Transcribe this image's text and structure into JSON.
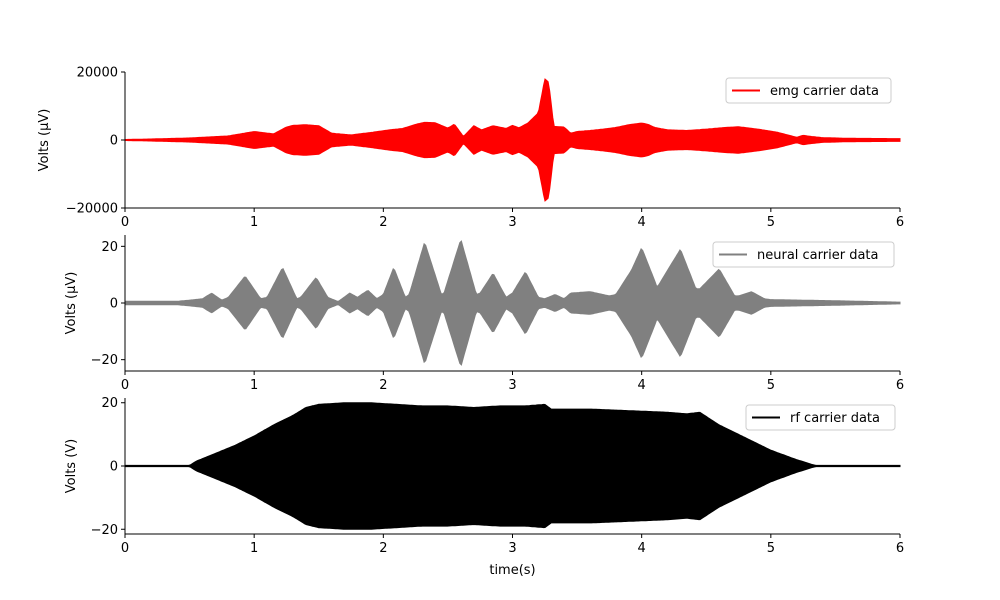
{
  "chart_data": [
    {
      "type": "area",
      "ylabel": "Volts (μV)",
      "xlabel": "",
      "xlim": [
        0,
        6
      ],
      "ylim": [
        -20000,
        20000
      ],
      "x_ticks": [
        "0",
        "1",
        "2",
        "3",
        "4",
        "5",
        "6"
      ],
      "y_ticks": [
        {
          "value": 20000,
          "label": "20000"
        },
        {
          "value": 0,
          "label": "0"
        },
        {
          "value": -20000,
          "label": "−20000"
        }
      ],
      "legend": "top-right",
      "series": [
        {
          "name": "emg carrier data",
          "color": "#ff0000",
          "x": [
            0,
            0.2,
            0.5,
            0.8,
            1.0,
            1.15,
            1.25,
            1.3,
            1.4,
            1.5,
            1.6,
            1.75,
            1.9,
            2.05,
            2.15,
            2.25,
            2.32,
            2.4,
            2.5,
            2.55,
            2.62,
            2.7,
            2.76,
            2.85,
            2.95,
            3.0,
            3.05,
            3.12,
            3.2,
            3.25,
            3.28,
            3.32,
            3.4,
            3.45,
            3.5,
            3.6,
            3.7,
            3.8,
            3.9,
            4.0,
            4.05,
            4.1,
            4.2,
            4.35,
            4.5,
            4.65,
            4.75,
            4.9,
            5.05,
            5.2,
            5.25,
            5.3,
            5.4,
            5.6,
            6.0
          ],
          "y_envelope": [
            150,
            300,
            600,
            1200,
            2500,
            1800,
            3800,
            4300,
            4500,
            4200,
            2000,
            1500,
            2200,
            3000,
            3400,
            4600,
            5200,
            5100,
            3500,
            4700,
            1000,
            4200,
            3000,
            4200,
            3400,
            4300,
            3600,
            5000,
            8000,
            18000,
            17000,
            4000,
            3800,
            2000,
            2500,
            2800,
            3200,
            3700,
            4500,
            5000,
            4600,
            3700,
            3000,
            2800,
            3200,
            3700,
            3900,
            3200,
            2300,
            800,
            1400,
            1100,
            700,
            500,
            400
          ]
        }
      ]
    },
    {
      "type": "area",
      "ylabel": "Volts (μV)",
      "xlabel": "",
      "xlim": [
        0,
        6
      ],
      "ylim": [
        -24,
        24
      ],
      "x_ticks": [
        "0",
        "1",
        "2",
        "3",
        "4",
        "5",
        "6"
      ],
      "y_ticks": [
        {
          "value": 20,
          "label": "20"
        },
        {
          "value": 0,
          "label": "0"
        },
        {
          "value": -20,
          "label": "−20"
        }
      ],
      "legend": "top-right",
      "series": [
        {
          "name": "neural carrier data",
          "color": "#808080",
          "x": [
            0,
            0.4,
            0.5,
            0.6,
            0.67,
            0.75,
            0.8,
            0.93,
            1.05,
            1.1,
            1.22,
            1.33,
            1.36,
            1.48,
            1.57,
            1.65,
            1.74,
            1.8,
            1.88,
            1.95,
            2.0,
            2.08,
            2.17,
            2.2,
            2.32,
            2.45,
            2.47,
            2.6,
            2.72,
            2.75,
            2.85,
            2.95,
            3.0,
            3.1,
            3.2,
            3.25,
            3.33,
            3.4,
            3.45,
            3.6,
            3.75,
            3.8,
            3.92,
            4.0,
            4.1,
            4.12,
            4.3,
            4.42,
            4.45,
            4.6,
            4.72,
            4.75,
            4.85,
            4.95,
            5.0,
            5.5,
            6.0
          ],
          "y_envelope": [
            0.6,
            0.6,
            1.0,
            1.5,
            3.5,
            1.0,
            2.0,
            9.5,
            1.5,
            2.0,
            12.5,
            1.5,
            2.0,
            9.0,
            2.0,
            0.5,
            3.5,
            2.0,
            4.5,
            1.5,
            3.0,
            12.5,
            2.0,
            3.0,
            21.5,
            3.0,
            3.5,
            22.5,
            3.0,
            3.5,
            10.5,
            2.0,
            3.5,
            11.0,
            2.0,
            1.5,
            3.0,
            1.5,
            3.5,
            4.0,
            2.5,
            3.0,
            11.5,
            19.5,
            8.0,
            5.5,
            19.0,
            5.0,
            5.0,
            12.0,
            2.5,
            2.5,
            4.0,
            1.5,
            1.2,
            0.8,
            0.3
          ]
        }
      ]
    },
    {
      "type": "area",
      "ylabel": "Volts (V)",
      "xlabel": "time(s)",
      "xlim": [
        0,
        6
      ],
      "ylim": [
        -21.5,
        21.5
      ],
      "x_ticks": [
        "0",
        "1",
        "2",
        "3",
        "4",
        "5",
        "6"
      ],
      "y_ticks": [
        {
          "value": 20,
          "label": "20"
        },
        {
          "value": 0,
          "label": "0"
        },
        {
          "value": -20,
          "label": "−20"
        }
      ],
      "legend": "top-right",
      "series": [
        {
          "name": "rf carrier data",
          "color": "#000000",
          "x": [
            0,
            0.5,
            0.55,
            0.7,
            0.85,
            1.0,
            1.15,
            1.3,
            1.4,
            1.5,
            1.7,
            1.9,
            2.1,
            2.3,
            2.5,
            2.7,
            2.9,
            3.1,
            3.25,
            3.3,
            3.6,
            3.9,
            4.2,
            4.35,
            4.45,
            4.6,
            4.8,
            5.0,
            5.2,
            5.32,
            5.35,
            5.5,
            6.0
          ],
          "y_envelope": [
            0.2,
            0.2,
            1.5,
            4.0,
            6.5,
            9.5,
            13.0,
            16.0,
            18.5,
            19.5,
            20.0,
            20.0,
            19.5,
            19.0,
            19.0,
            18.5,
            19.0,
            19.0,
            19.5,
            18.0,
            18.0,
            17.5,
            17.0,
            16.5,
            17.0,
            13.0,
            9.0,
            5.0,
            2.0,
            0.5,
            0.2,
            0.2,
            0.2
          ]
        }
      ]
    }
  ]
}
